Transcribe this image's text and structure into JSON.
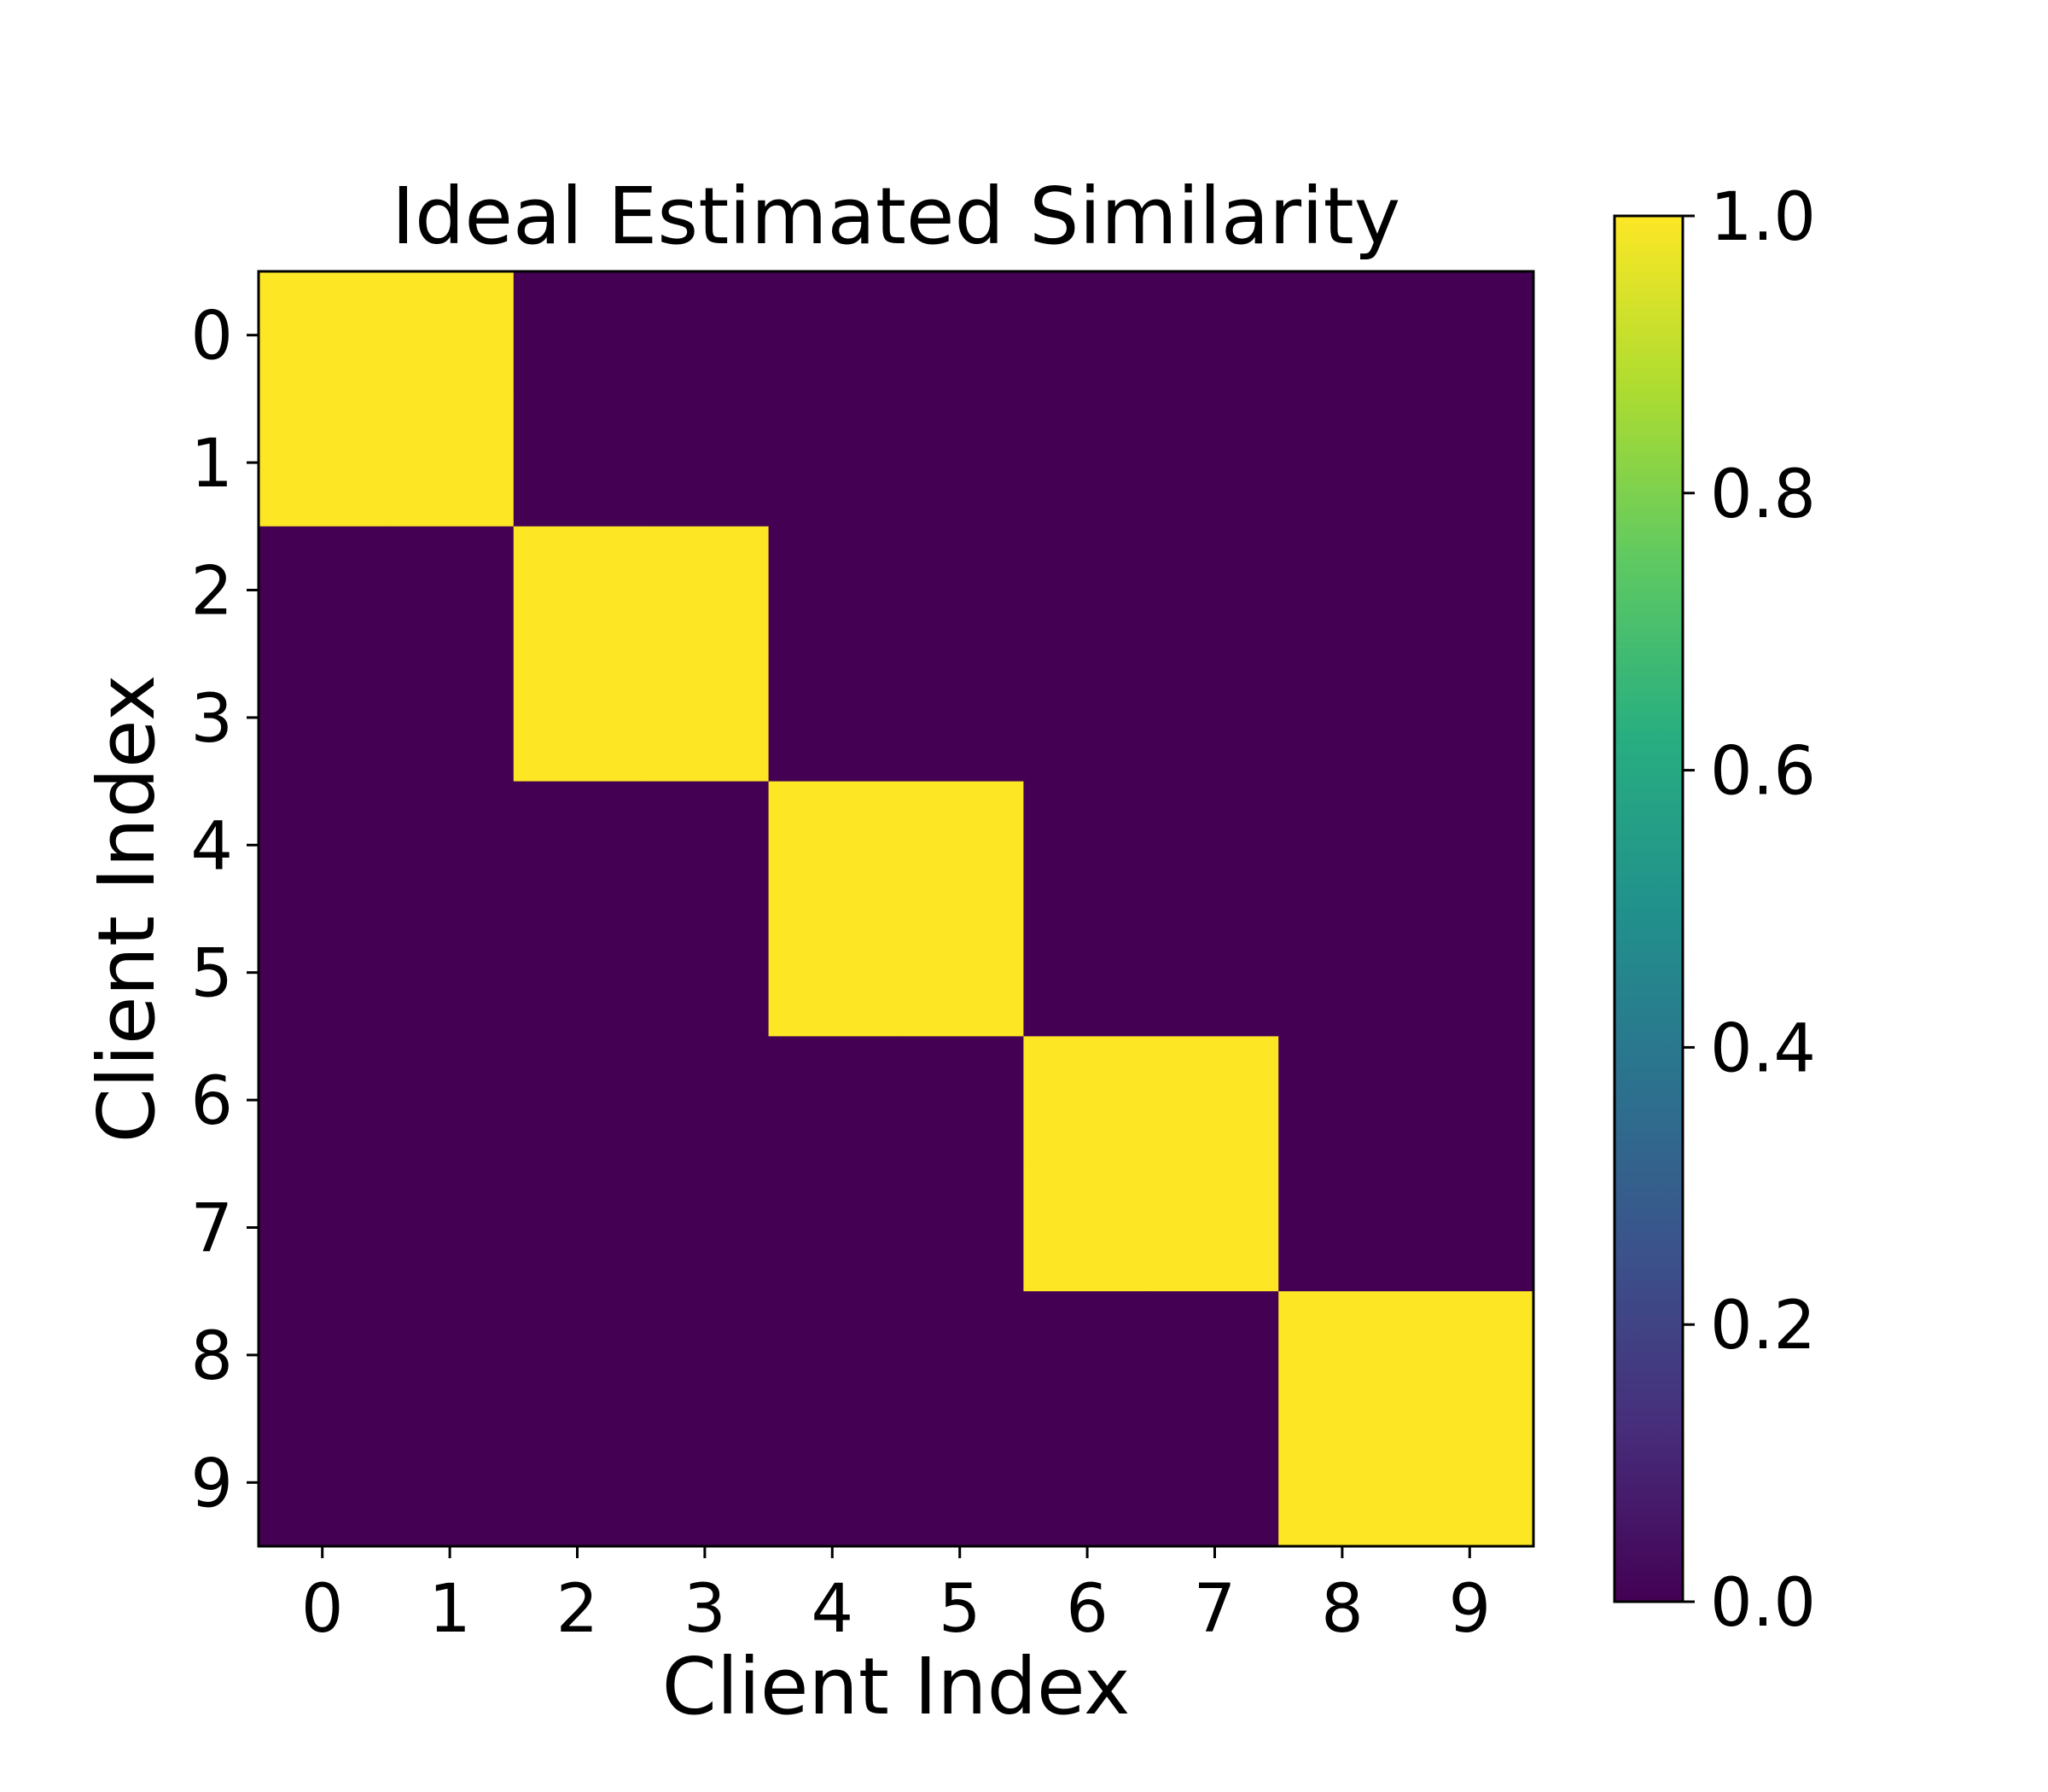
{
  "chart_data": {
    "type": "heatmap",
    "title": "Ideal Estimated Similarity",
    "xlabel": "Client Index",
    "ylabel": "Client Index",
    "x_categories": [
      "0",
      "1",
      "2",
      "3",
      "4",
      "5",
      "6",
      "7",
      "8",
      "9"
    ],
    "y_categories": [
      "0",
      "1",
      "2",
      "3",
      "4",
      "5",
      "6",
      "7",
      "8",
      "9"
    ],
    "values": [
      [
        1,
        1,
        0,
        0,
        0,
        0,
        0,
        0,
        0,
        0
      ],
      [
        1,
        1,
        0,
        0,
        0,
        0,
        0,
        0,
        0,
        0
      ],
      [
        0,
        0,
        1,
        1,
        0,
        0,
        0,
        0,
        0,
        0
      ],
      [
        0,
        0,
        1,
        1,
        0,
        0,
        0,
        0,
        0,
        0
      ],
      [
        0,
        0,
        0,
        0,
        1,
        1,
        0,
        0,
        0,
        0
      ],
      [
        0,
        0,
        0,
        0,
        1,
        1,
        0,
        0,
        0,
        0
      ],
      [
        0,
        0,
        0,
        0,
        0,
        0,
        1,
        1,
        0,
        0
      ],
      [
        0,
        0,
        0,
        0,
        0,
        0,
        1,
        1,
        0,
        0
      ],
      [
        0,
        0,
        0,
        0,
        0,
        0,
        0,
        0,
        1,
        1
      ],
      [
        0,
        0,
        0,
        0,
        0,
        0,
        0,
        0,
        1,
        1
      ]
    ],
    "colorbar": {
      "range": [
        0.0,
        1.0
      ],
      "ticks": [
        "0.0",
        "0.2",
        "0.4",
        "0.6",
        "0.8",
        "1.0"
      ],
      "colormap": "viridis",
      "colors": [
        "#440154",
        "#472d7b",
        "#3b528b",
        "#2c728e",
        "#21918c",
        "#28ae80",
        "#5ec962",
        "#addc30",
        "#fde725"
      ]
    },
    "grid": false
  }
}
